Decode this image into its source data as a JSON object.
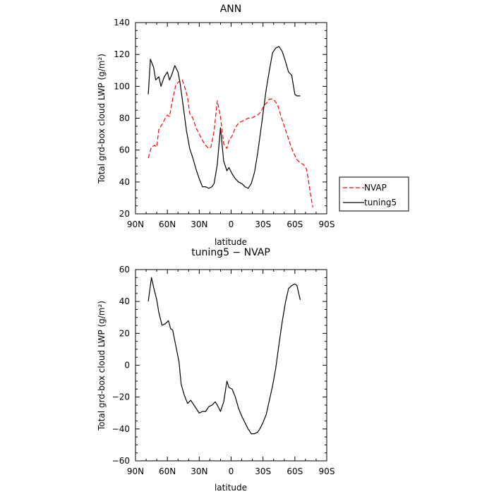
{
  "chart_data": [
    {
      "type": "line",
      "title": "ANN",
      "xlabel": "latitude",
      "ylabel": "Total grd-box cloud LWP (g/m²)",
      "xlim": [
        90,
        -90
      ],
      "ylim": [
        20,
        140
      ],
      "xticks": [
        90,
        60,
        30,
        0,
        -30,
        -60,
        -90
      ],
      "xtick_labels": [
        "90N",
        "60N",
        "30N",
        "0",
        "30S",
        "60S",
        "90S"
      ],
      "yticks": [
        20,
        40,
        60,
        80,
        100,
        120,
        140
      ],
      "legend_position": "right",
      "series": [
        {
          "name": "NVAP",
          "color": "#ff0000",
          "dash": "dashed",
          "x": [
            78,
            75,
            72,
            70,
            68,
            65,
            62,
            60,
            58,
            55,
            52,
            49,
            46,
            43,
            41,
            39,
            36,
            33,
            30,
            27,
            24,
            21,
            19,
            16,
            13,
            10,
            7,
            4,
            2,
            -1,
            -4,
            -7,
            -10,
            -13,
            -16,
            -19,
            -22,
            -25,
            -28,
            -31,
            -34,
            -36,
            -39,
            -41,
            -44,
            -47,
            -50,
            -53,
            -56,
            -59,
            -62,
            -65,
            -68,
            -71,
            -73,
            -75,
            -77
          ],
          "y": [
            55,
            62,
            63,
            62,
            73,
            76,
            80,
            82,
            81,
            92,
            101,
            103,
            104,
            98,
            93,
            83,
            80,
            74,
            70,
            66,
            63,
            61,
            62,
            72,
            91,
            81,
            64,
            61,
            66,
            69,
            74,
            77,
            78,
            79,
            80,
            80,
            81,
            82,
            84,
            88,
            90,
            92,
            92,
            91,
            88,
            81,
            75,
            69,
            63,
            58,
            54,
            52,
            51,
            48,
            40,
            31,
            24
          ]
        },
        {
          "name": "tuning5",
          "color": "#000000",
          "dash": "solid",
          "x": [
            78,
            76,
            73,
            71,
            68,
            66,
            63,
            60,
            58,
            56,
            53,
            50,
            48,
            45,
            42,
            39,
            36,
            33,
            30,
            27,
            24,
            21,
            18,
            16,
            13,
            10,
            7,
            4,
            2,
            -1,
            -4,
            -7,
            -10,
            -13,
            -16,
            -19,
            -22,
            -25,
            -28,
            -31,
            -33,
            -36,
            -39,
            -42,
            -45,
            -48,
            -51,
            -54,
            -57,
            -60,
            -62,
            -65
          ],
          "y": [
            95,
            117,
            112,
            104,
            106,
            100,
            106,
            109,
            104,
            107,
            113,
            109,
            102,
            87,
            72,
            61,
            55,
            48,
            42,
            37,
            37,
            36,
            37,
            39,
            51,
            74,
            53,
            47,
            49,
            45,
            42,
            40,
            39,
            37,
            36,
            39,
            46,
            58,
            73,
            88,
            98,
            110,
            121,
            124,
            125,
            122,
            116,
            109,
            107,
            95,
            94,
            94
          ]
        }
      ]
    },
    {
      "type": "line",
      "title": "tuning5 − NVAP",
      "xlabel": "latitude",
      "ylabel": "Total grd-box cloud LWP (g/m²)",
      "xlim": [
        90,
        -90
      ],
      "ylim": [
        -60,
        60
      ],
      "xticks": [
        90,
        60,
        30,
        0,
        -30,
        -60,
        -90
      ],
      "xtick_labels": [
        "90N",
        "60N",
        "30N",
        "0",
        "30S",
        "60S",
        "90S"
      ],
      "yticks": [
        -60,
        -40,
        -20,
        0,
        20,
        40,
        60
      ],
      "series": [
        {
          "color": "#000000",
          "dash": "solid",
          "x": [
            78,
            75,
            73,
            70,
            68,
            65,
            62,
            59,
            57,
            55,
            52,
            49,
            47,
            44,
            41,
            38,
            35,
            33,
            30,
            27,
            24,
            21,
            18,
            15,
            13,
            10,
            7,
            4,
            2,
            -1,
            -4,
            -7,
            -10,
            -13,
            -16,
            -19,
            -22,
            -25,
            -27,
            -30,
            -33,
            -36,
            -39,
            -42,
            -45,
            -48,
            -51,
            -54,
            -57,
            -60,
            -62,
            -65
          ],
          "y": [
            40,
            55,
            49,
            41,
            33,
            25,
            26,
            28,
            23,
            22,
            12,
            2,
            -12,
            -19,
            -24,
            -22,
            -25,
            -27,
            -30,
            -29,
            -29,
            -26,
            -25,
            -23,
            -25,
            -29,
            -23,
            -10,
            -14,
            -15,
            -20,
            -27,
            -32,
            -36,
            -40,
            -43,
            -43,
            -42,
            -40,
            -36,
            -31,
            -22,
            -13,
            -2,
            13,
            27,
            39,
            48,
            50,
            51,
            50,
            41
          ]
        }
      ]
    }
  ]
}
